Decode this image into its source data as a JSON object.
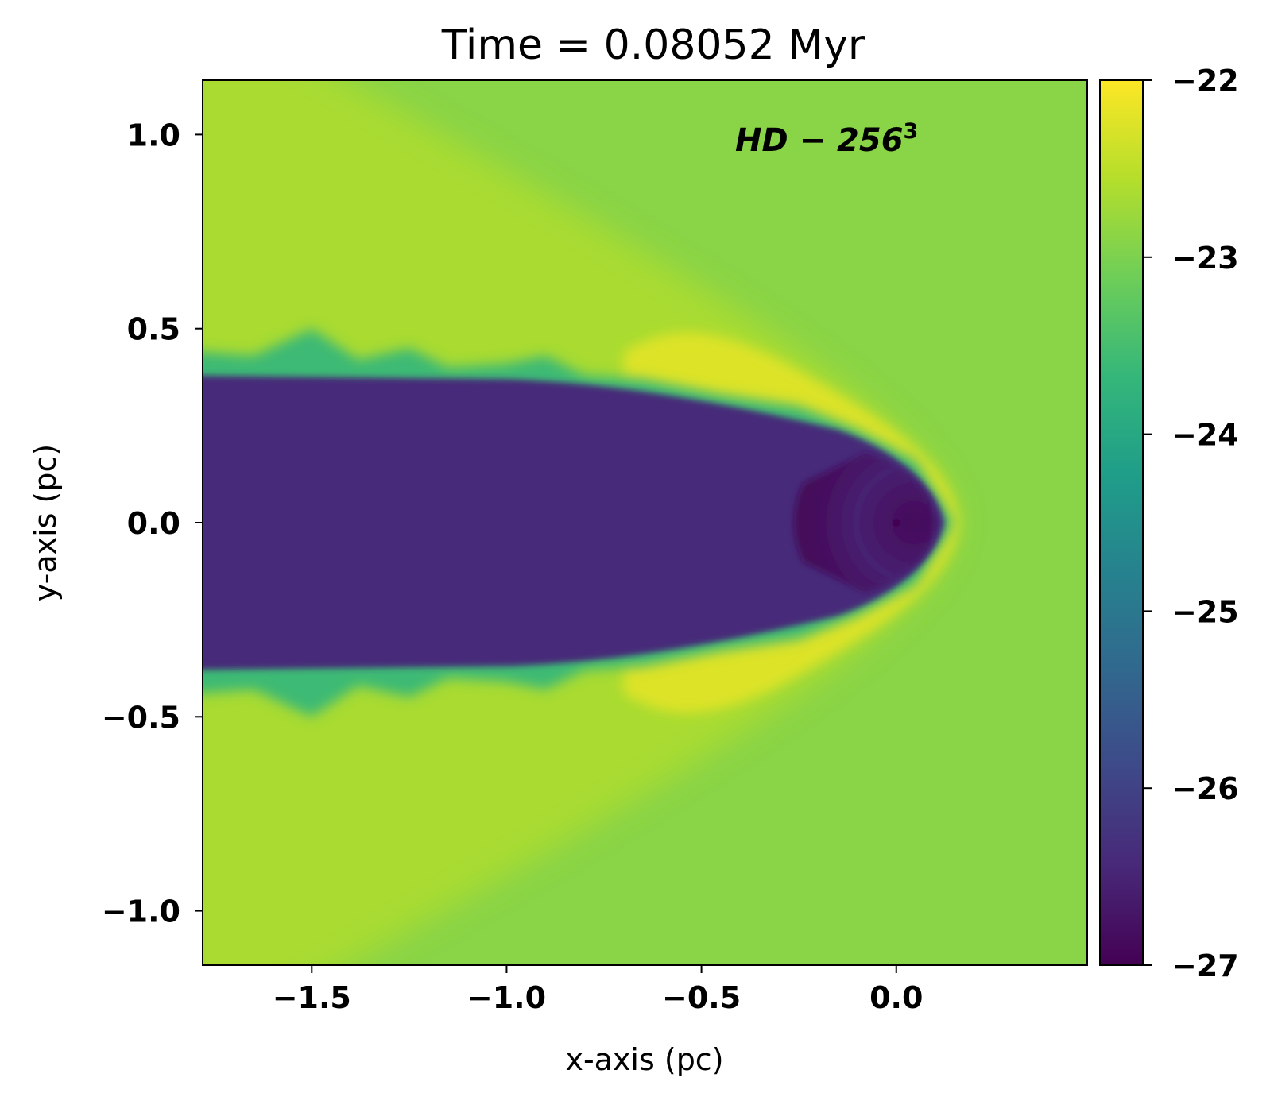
{
  "chart_data": {
    "type": "heatmap",
    "title": "Time = 0.08052 Myr",
    "xlabel": "x-axis (pc)",
    "ylabel": "y-axis (pc)",
    "xlim": [
      -1.78,
      0.49
    ],
    "ylim": [
      -1.14,
      1.14
    ],
    "xticks": [
      -1.5,
      -1.0,
      -0.5,
      0.0
    ],
    "xtick_labels": [
      "−1.5",
      "−1.0",
      "−0.5",
      "0.0"
    ],
    "yticks": [
      -1.0,
      -0.5,
      0.0,
      0.5,
      1.0
    ],
    "ytick_labels": [
      "−1.0",
      "−0.5",
      "0.0",
      "0.5",
      "1.0"
    ],
    "annotation": {
      "main": "HD − 256",
      "superscript": "3"
    },
    "colorbar": {
      "min": -27,
      "max": -22,
      "ticks": [
        -27,
        -26,
        -25,
        -24,
        -23,
        -22
      ],
      "tick_labels": [
        "−27",
        "−26",
        "−25",
        "−24",
        "−23",
        "−22"
      ],
      "colormap": "viridis",
      "colors": [
        "#440154",
        "#482878",
        "#3e4989",
        "#31688e",
        "#26828e",
        "#1f9e89",
        "#35b779",
        "#6ece58",
        "#b5de2b",
        "#fde725"
      ]
    },
    "field": {
      "ambient_level": -22.9,
      "wake_level": -26.4,
      "inner_bubble_level": -26.9,
      "shock_shell_level": -22.2,
      "tail_flank_level": -22.6,
      "turbulent_edge_level": -23.6,
      "source_point": [
        0.0,
        0.0
      ],
      "bow_shock_apex_x": 0.14
    },
    "grid": false
  }
}
